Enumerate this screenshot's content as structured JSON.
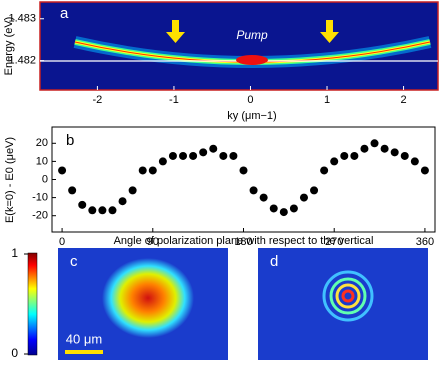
{
  "chart_data": [
    {
      "type": "heatmap",
      "label": "a",
      "annotation": "Pump",
      "x_label": "ky (μm−1)",
      "y_label": "Energy (eV)",
      "xlim": [
        -2.75,
        2.45
      ],
      "xticks": [
        -2,
        -1,
        0,
        1,
        2
      ],
      "ylim": [
        1.4813,
        1.4834
      ],
      "yticks": [
        1.482,
        1.483
      ]
    },
    {
      "type": "scatter",
      "label": "b",
      "x_label": "Angle of polarization plane with respect to the vertical",
      "y_label": "E(k=0) - E0 (μeV)",
      "x": [
        0,
        10,
        20,
        30,
        40,
        50,
        60,
        70,
        80,
        90,
        100,
        110,
        120,
        130,
        140,
        150,
        160,
        170,
        180,
        190,
        200,
        210,
        220,
        230,
        240,
        250,
        260,
        270,
        280,
        290,
        300,
        310,
        320,
        330,
        340,
        350,
        360
      ],
      "values": [
        5,
        -6,
        -14,
        -17,
        -17,
        -17,
        -12,
        -6,
        5,
        5,
        10,
        13,
        13,
        13,
        15,
        17,
        13,
        13,
        5,
        -6,
        -10,
        -16,
        -18,
        -16,
        -10,
        -6,
        5,
        10,
        13,
        13,
        17,
        20,
        17,
        15,
        13,
        10,
        5
      ],
      "color": "#000000",
      "xlim": [
        -10,
        370
      ],
      "xticks": [
        0,
        90,
        180,
        270,
        360
      ],
      "ylim": [
        -29,
        29
      ],
      "yticks": [
        -20,
        -10,
        0,
        10,
        20
      ]
    },
    {
      "type": "image",
      "label": "c",
      "scale_bar": "40 μm",
      "zlim": [
        0,
        1
      ],
      "zticks": [
        0,
        1
      ]
    },
    {
      "type": "image",
      "label": "d"
    }
  ]
}
